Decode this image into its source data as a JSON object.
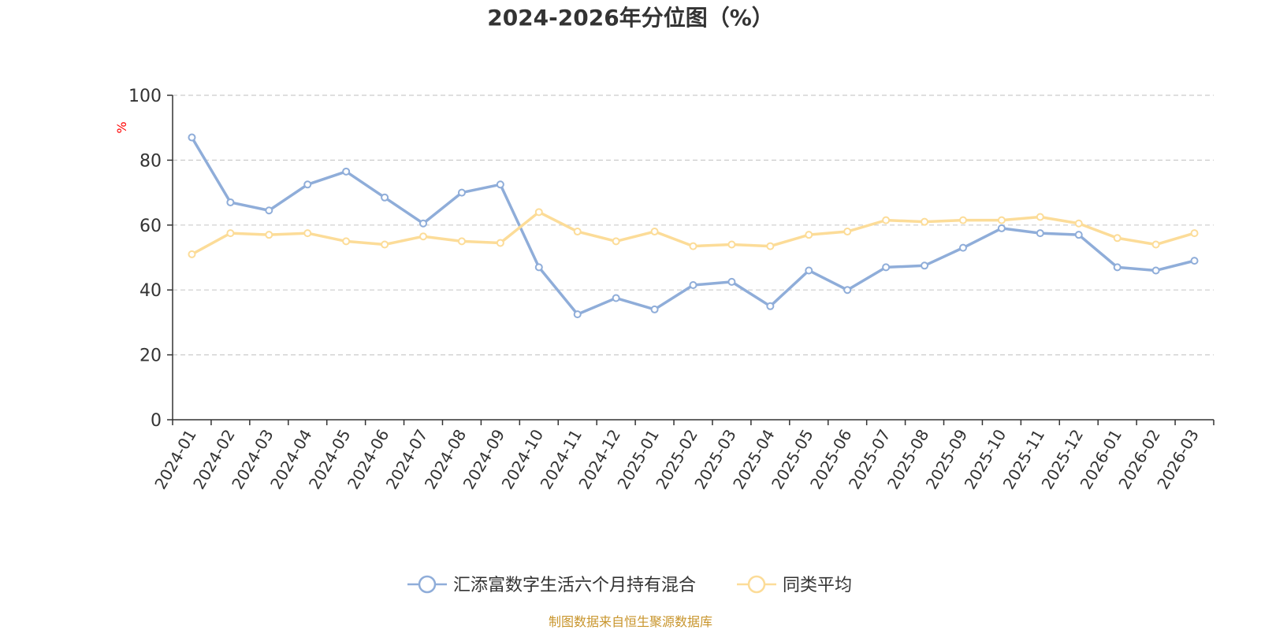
{
  "chart_data": {
    "type": "line",
    "title": "2024-2026年分位图（%）",
    "ylabel": "%",
    "ylim": [
      0,
      100
    ],
    "yticks": [
      "0",
      "20",
      "40",
      "60",
      "80",
      "100"
    ],
    "ytick_values": [
      0,
      20,
      40,
      60,
      80,
      100
    ],
    "grid": true,
    "legend_position": "bottom-center",
    "categories": [
      "2024-01",
      "2024-02",
      "2024-03",
      "2024-04",
      "2024-05",
      "2024-06",
      "2024-07",
      "2024-08",
      "2024-09",
      "2024-10",
      "2024-11",
      "2024-12",
      "2025-01",
      "2025-02",
      "2025-03",
      "2025-04",
      "2025-05",
      "2025-06",
      "2025-07",
      "2025-08",
      "2025-09",
      "2025-10",
      "2025-11",
      "2025-12",
      "2026-01",
      "2026-02",
      "2026-03"
    ],
    "series": [
      {
        "name": "汇添富数字生活六个月持有混合",
        "color": "#8fadd9",
        "values": [
          87,
          67,
          64.5,
          72.5,
          76.5,
          68.5,
          60.5,
          70,
          72.5,
          47,
          32.5,
          37.5,
          34,
          41.5,
          42.5,
          35,
          46,
          40,
          47,
          47.5,
          53,
          59,
          57.5,
          57,
          47,
          46,
          49
        ]
      },
      {
        "name": "同类平均",
        "color": "#fcdc98",
        "values": [
          51,
          57.5,
          57,
          57.5,
          55,
          54,
          56.5,
          55,
          54.5,
          64,
          58,
          55,
          58,
          53.5,
          54,
          53.5,
          57,
          58,
          61.5,
          61,
          61.5,
          61.5,
          62.5,
          60.5,
          56,
          54,
          57.5
        ]
      }
    ]
  },
  "footer": {
    "source": "制图数据来自恒生聚源数据库",
    "source_color": "#c8952c"
  },
  "colors": {
    "axis": "#333333",
    "grid": "#cccccc",
    "unit": "#ff0000"
  }
}
